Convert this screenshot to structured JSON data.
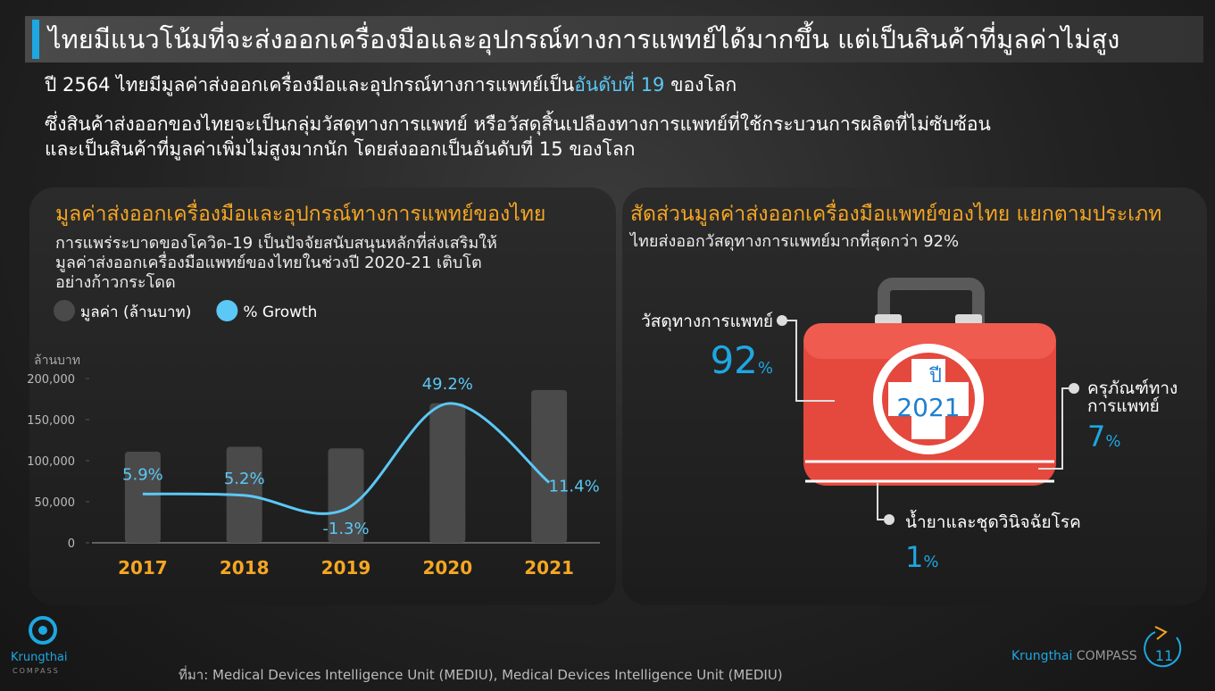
{
  "header": {
    "title": "ไทยมีแนวโน้มที่จะส่งออกเครื่องมือและอุปกรณ์ทางการแพทย์ได้มากขึ้น แต่เป็นสินค้าที่มูลค่าไม่สูง",
    "lead": [
      "ปี 2564 ไทยมีมูลค่าส่งออกเครื่องมือและอุปกรณ์ทางการแพทย์เป็น",
      "อันดับที่ 19",
      " ของโลก"
    ],
    "paragraph": [
      "ซึ่งสินค้าส่งออกของไทยจะเป็นกลุ่มวัสดุทางการแพทย์ หรือวัสดุสิ้นเปลืองทางการแพทย์ที่ใช้กระบวนการผลิตที่ไม่ซับซ้อน",
      "และเป็นสินค้าที่มูลค่าเพิ่มไม่สูงมากนัก โดยส่งออกเป็นอันดับที่ 15 ของโลก"
    ]
  },
  "chart_data": {
    "type": "bar-line",
    "title": "มูลค่าส่งออกเครื่องมือและอุปกรณ์ทางการแพทย์ของไทย",
    "description": [
      "การแพร่ระบาดของโควิด-19 เป็นปัจจัยสนับสนุนหลักที่ส่งเสริมให้",
      "มูลค่าส่งออกเครื่องมือแพทย์ของไทยในช่วงปี 2020-21 เติบโต",
      "อย่างก้าวกระโดด"
    ],
    "y_label": "ล้านบาท",
    "categories": [
      "2017",
      "2018",
      "2019",
      "2020",
      "2021"
    ],
    "series": [
      {
        "name": "มูลค่า (ล้านบาท)",
        "color": "#4a4a4a",
        "type": "bar",
        "values": [
          111000,
          117000,
          115000,
          170000,
          186000
        ]
      },
      {
        "name": "% Growth",
        "color": "#5bc8f5",
        "type": "line",
        "axis": "y2",
        "values": [
          5.9,
          5.2,
          -1.3,
          49.2,
          11.4
        ],
        "value_labels": [
          "5.9%",
          "5.2%",
          "-1.3%",
          "49.2%",
          "11.4%"
        ]
      }
    ],
    "ylim": [
      0,
      200000
    ],
    "yticks": [
      0,
      {
        "value": 50000,
        "label": "50,000"
      },
      {
        "value": 100000,
        "label": "100,000"
      },
      {
        "value": 150000,
        "label": "150,000"
      },
      {
        "value": 200000,
        "label": "200,000"
      }
    ],
    "y2lim": [
      -17.5,
      61.2
    ]
  },
  "right_panel": {
    "title": "สัดส่วนมูลค่าส่งออกเครื่องมือแพทย์ของไทย แยกตามประเภท",
    "subtitle": "ไทยส่งออกวัสดุทางการแพทย์มากที่สุดกว่า 92%",
    "kit_text": [
      "ปี",
      "2021"
    ],
    "items": [
      {
        "label_lines": [
          "วัสดุทางการแพทย์"
        ],
        "value": 92,
        "unit": "%"
      },
      {
        "label_lines": [
          "ครุภัณฑ์ทาง",
          "การแพทย์"
        ],
        "value": 7,
        "unit": "%"
      },
      {
        "label_lines": [
          "น้ำยาและชุดวินิจฉัยโรค"
        ],
        "value": 1,
        "unit": "%"
      }
    ]
  },
  "footer": {
    "source_label": "ที่มา:",
    "source": " Medical Devices Intelligence Unit (MEDIU), Medical Devices Intelligence Unit (MEDIU)",
    "logo": [
      "Krungthai",
      "COMPASS"
    ],
    "brand": [
      "Krungthai",
      " COMPASS"
    ],
    "page": "11"
  }
}
